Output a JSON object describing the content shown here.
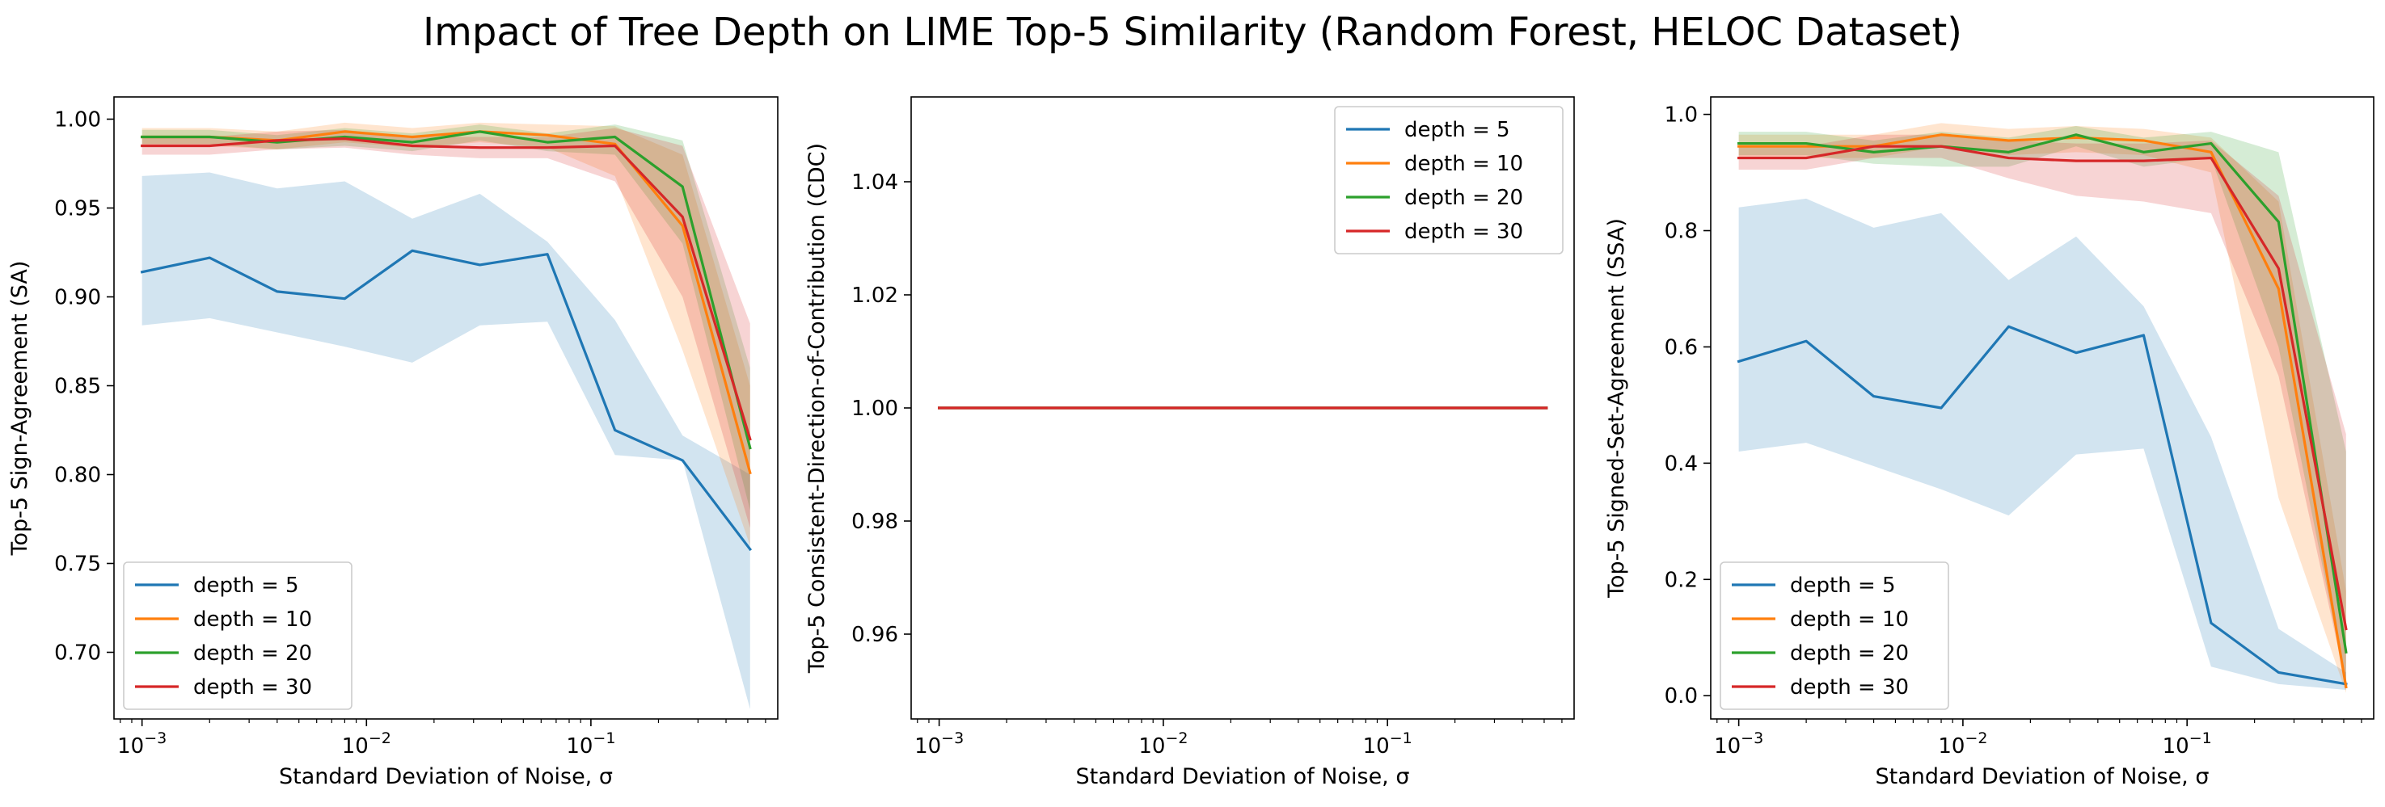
{
  "figure": {
    "title": "Impact of Tree Depth on LIME Top-5 Similarity (Random Forest, HELOC Dataset)"
  },
  "chart_data": [
    {
      "type": "line",
      "xlabel": "Standard Deviation of Noise, σ",
      "ylabel": "Top-5 Sign-Agreement (SA)",
      "xscale": "log",
      "xlim": [
        0.00075,
        0.68
      ],
      "ylim": [
        0.6625,
        1.0125
      ],
      "xticks": [
        {
          "value": 0.001,
          "base": "10",
          "exp": "−3"
        },
        {
          "value": 0.01,
          "base": "10",
          "exp": "−2"
        },
        {
          "value": 0.1,
          "base": "10",
          "exp": "−1"
        }
      ],
      "yticks": [
        "0.70",
        "0.75",
        "0.80",
        "0.85",
        "0.90",
        "0.95",
        "1.00"
      ],
      "legend_loc": "lower-left",
      "x": [
        0.001,
        0.002,
        0.004,
        0.008,
        0.016,
        0.032,
        0.064,
        0.128,
        0.256,
        0.512
      ],
      "series": [
        {
          "name": "depth = 5",
          "color": "#1f77b4",
          "values": [
            0.914,
            0.922,
            0.903,
            0.899,
            0.926,
            0.918,
            0.924,
            0.825,
            0.808,
            0.758
          ],
          "lower": [
            0.884,
            0.888,
            0.88,
            0.872,
            0.863,
            0.884,
            0.886,
            0.811,
            0.808,
            0.668
          ],
          "upper": [
            0.968,
            0.97,
            0.961,
            0.965,
            0.944,
            0.958,
            0.931,
            0.887,
            0.822,
            0.8
          ]
        },
        {
          "name": "depth = 10",
          "color": "#ff7f0e",
          "values": [
            0.99,
            0.99,
            0.988,
            0.993,
            0.99,
            0.993,
            0.991,
            0.986,
            0.94,
            0.801
          ],
          "lower": [
            0.985,
            0.985,
            0.983,
            0.987,
            0.984,
            0.987,
            0.984,
            0.968,
            0.87,
            0.76
          ],
          "upper": [
            0.995,
            0.995,
            0.993,
            0.998,
            0.995,
            0.998,
            0.997,
            0.996,
            0.98,
            0.85
          ]
        },
        {
          "name": "depth = 20",
          "color": "#2ca02c",
          "values": [
            0.99,
            0.99,
            0.987,
            0.99,
            0.987,
            0.993,
            0.987,
            0.99,
            0.962,
            0.815
          ],
          "lower": [
            0.986,
            0.986,
            0.983,
            0.985,
            0.982,
            0.988,
            0.982,
            0.98,
            0.93,
            0.78
          ],
          "upper": [
            0.994,
            0.994,
            0.991,
            0.995,
            0.992,
            0.997,
            0.992,
            0.997,
            0.988,
            0.86
          ]
        },
        {
          "name": "depth = 30",
          "color": "#d62728",
          "values": [
            0.985,
            0.985,
            0.988,
            0.989,
            0.985,
            0.984,
            0.984,
            0.985,
            0.945,
            0.82
          ],
          "lower": [
            0.98,
            0.98,
            0.983,
            0.984,
            0.98,
            0.978,
            0.978,
            0.965,
            0.9,
            0.77
          ],
          "upper": [
            0.99,
            0.99,
            0.993,
            0.994,
            0.99,
            0.99,
            0.99,
            0.995,
            0.985,
            0.885
          ]
        }
      ]
    },
    {
      "type": "line",
      "xlabel": "Standard Deviation of Noise, σ",
      "ylabel": "Top-5 Consistent-Direction-of-Contribution (CDC)",
      "xscale": "log",
      "xlim": [
        0.00075,
        0.68
      ],
      "ylim": [
        0.945,
        1.055
      ],
      "xticks": [
        {
          "value": 0.001,
          "base": "10",
          "exp": "−3"
        },
        {
          "value": 0.01,
          "base": "10",
          "exp": "−2"
        },
        {
          "value": 0.1,
          "base": "10",
          "exp": "−1"
        }
      ],
      "yticks": [
        "0.96",
        "0.98",
        "1.00",
        "1.02",
        "1.04"
      ],
      "legend_loc": "upper-right",
      "x": [
        0.001,
        0.002,
        0.004,
        0.008,
        0.016,
        0.032,
        0.064,
        0.128,
        0.256,
        0.512
      ],
      "series": [
        {
          "name": "depth = 5",
          "color": "#1f77b4",
          "values": [
            1,
            1,
            1,
            1,
            1,
            1,
            1,
            1,
            1,
            1
          ]
        },
        {
          "name": "depth = 10",
          "color": "#ff7f0e",
          "values": [
            1,
            1,
            1,
            1,
            1,
            1,
            1,
            1,
            1,
            1
          ]
        },
        {
          "name": "depth = 20",
          "color": "#2ca02c",
          "values": [
            1,
            1,
            1,
            1,
            1,
            1,
            1,
            1,
            1,
            1
          ]
        },
        {
          "name": "depth = 30",
          "color": "#d62728",
          "values": [
            1,
            1,
            1,
            1,
            1,
            1,
            1,
            1,
            1,
            1
          ]
        }
      ]
    },
    {
      "type": "line",
      "xlabel": "Standard Deviation of Noise, σ",
      "ylabel": "Top-5 Signed-Set-Agreement (SSA)",
      "xscale": "log",
      "xlim": [
        0.00075,
        0.68
      ],
      "ylim": [
        -0.04,
        1.03
      ],
      "xticks": [
        {
          "value": 0.001,
          "base": "10",
          "exp": "−3"
        },
        {
          "value": 0.01,
          "base": "10",
          "exp": "−2"
        },
        {
          "value": 0.1,
          "base": "10",
          "exp": "−1"
        }
      ],
      "yticks": [
        "0.0",
        "0.2",
        "0.4",
        "0.6",
        "0.8",
        "1.0"
      ],
      "legend_loc": "lower-left",
      "x": [
        0.001,
        0.002,
        0.004,
        0.008,
        0.016,
        0.032,
        0.064,
        0.128,
        0.256,
        0.512
      ],
      "series": [
        {
          "name": "depth = 5",
          "color": "#1f77b4",
          "values": [
            0.575,
            0.61,
            0.515,
            0.495,
            0.635,
            0.59,
            0.62,
            0.125,
            0.04,
            0.02
          ],
          "lower": [
            0.42,
            0.435,
            0.395,
            0.355,
            0.31,
            0.415,
            0.425,
            0.05,
            0.02,
            0.01
          ],
          "upper": [
            0.84,
            0.855,
            0.805,
            0.83,
            0.715,
            0.79,
            0.67,
            0.445,
            0.115,
            0.04
          ]
        },
        {
          "name": "depth = 10",
          "color": "#ff7f0e",
          "values": [
            0.945,
            0.945,
            0.945,
            0.965,
            0.955,
            0.96,
            0.955,
            0.935,
            0.7,
            0.015
          ],
          "lower": [
            0.925,
            0.925,
            0.925,
            0.945,
            0.93,
            0.935,
            0.93,
            0.9,
            0.34,
            0.005
          ],
          "upper": [
            0.965,
            0.965,
            0.965,
            0.985,
            0.975,
            0.98,
            0.975,
            0.96,
            0.85,
            0.18
          ]
        },
        {
          "name": "depth = 20",
          "color": "#2ca02c",
          "values": [
            0.95,
            0.95,
            0.935,
            0.945,
            0.935,
            0.965,
            0.935,
            0.95,
            0.815,
            0.075
          ],
          "lower": [
            0.93,
            0.93,
            0.915,
            0.91,
            0.91,
            0.945,
            0.91,
            0.925,
            0.6,
            0.02
          ],
          "upper": [
            0.97,
            0.97,
            0.955,
            0.97,
            0.96,
            0.98,
            0.96,
            0.97,
            0.935,
            0.42
          ]
        },
        {
          "name": "depth = 30",
          "color": "#d62728",
          "values": [
            0.925,
            0.925,
            0.945,
            0.945,
            0.925,
            0.92,
            0.92,
            0.925,
            0.735,
            0.115
          ],
          "lower": [
            0.905,
            0.905,
            0.925,
            0.925,
            0.89,
            0.86,
            0.85,
            0.83,
            0.55,
            0.02
          ],
          "upper": [
            0.945,
            0.945,
            0.965,
            0.965,
            0.955,
            0.95,
            0.95,
            0.955,
            0.86,
            0.45
          ]
        }
      ]
    }
  ]
}
